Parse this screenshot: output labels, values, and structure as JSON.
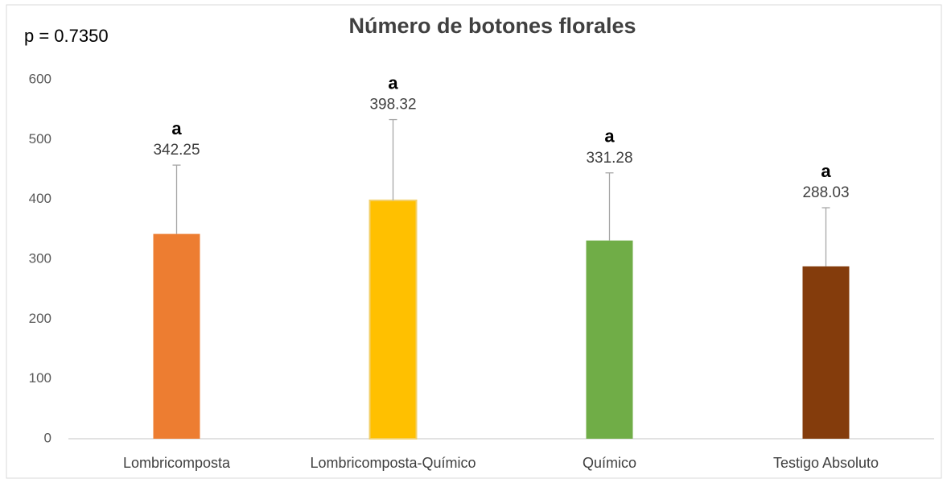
{
  "chart_data": {
    "type": "bar",
    "title": "Número de botones florales",
    "annotation": "p = 0.7350",
    "categories": [
      "Lombricomposta",
      "Lombricomposta-Químico",
      "Químico",
      "Testigo Absoluto"
    ],
    "values": [
      342.25,
      398.32,
      331.28,
      288.03
    ],
    "errors": [
      115,
      135,
      113,
      98
    ],
    "letters": [
      "a",
      "a",
      "a",
      "a"
    ],
    "colors": [
      "#ed7d31",
      "#ffc000",
      "#70ad47",
      "#843c0c"
    ],
    "ylim": [
      0,
      600
    ],
    "yticks": [
      0,
      100,
      200,
      300,
      400,
      500,
      600
    ],
    "grid": false
  }
}
